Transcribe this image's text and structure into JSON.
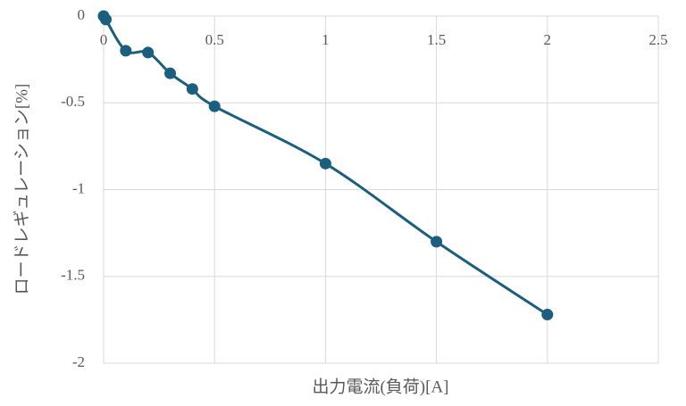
{
  "chart_data": {
    "type": "line",
    "smooth": true,
    "x_label": "出力電流(負荷)[A]",
    "y_label": "ロードレギュレーション[%]",
    "x": [
      0,
      0.01,
      0.1,
      0.2,
      0.3,
      0.4,
      0.5,
      1,
      1.5,
      2
    ],
    "series": [
      {
        "color": "#1b5e7e",
        "values": [
          0,
          -0.02,
          -0.2,
          -0.21,
          -0.33,
          -0.42,
          -0.52,
          -0.85,
          -1.3,
          -1.72
        ]
      }
    ],
    "xlim": [
      0,
      2.5
    ],
    "xticks": [
      0,
      0.5,
      1,
      1.5,
      2,
      2.5
    ],
    "ylim": [
      -2,
      0
    ],
    "yticks": [
      0,
      -0.5,
      -1,
      -1.5,
      -2
    ],
    "grid": true
  }
}
